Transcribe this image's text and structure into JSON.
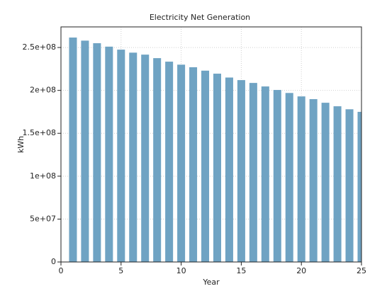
{
  "chart_data": {
    "type": "bar",
    "title": "Electricity Net Generation",
    "x_label": "Year",
    "y_label": "kWh",
    "x": [
      1,
      2,
      3,
      4,
      5,
      6,
      7,
      8,
      9,
      10,
      11,
      12,
      13,
      14,
      15,
      16,
      17,
      18,
      19,
      20,
      21,
      22,
      23,
      24,
      25
    ],
    "values": [
      261600000,
      258000000,
      255000000,
      251000000,
      247500000,
      244000000,
      241700000,
      237600000,
      233500000,
      230000000,
      227000000,
      223000000,
      219500000,
      215000000,
      212000000,
      208700000,
      204600000,
      200500000,
      197000000,
      193000000,
      189800000,
      185600000,
      181500000,
      178000000,
      175000000
    ],
    "color": "#6fa3c3",
    "xlim": [
      0,
      25
    ],
    "xticks": [
      0,
      5,
      10,
      15,
      20,
      25
    ],
    "ylim": [
      0,
      274000000
    ],
    "yticks": [
      0,
      {
        "value": 50000000,
        "label": "5e+07"
      },
      {
        "value": 100000000,
        "label": "1e+08"
      },
      {
        "value": 150000000,
        "label": "1.5e+08"
      },
      {
        "value": 200000000,
        "label": "2e+08"
      },
      {
        "value": 250000000,
        "label": "2.5e+08"
      }
    ],
    "grid": true
  }
}
